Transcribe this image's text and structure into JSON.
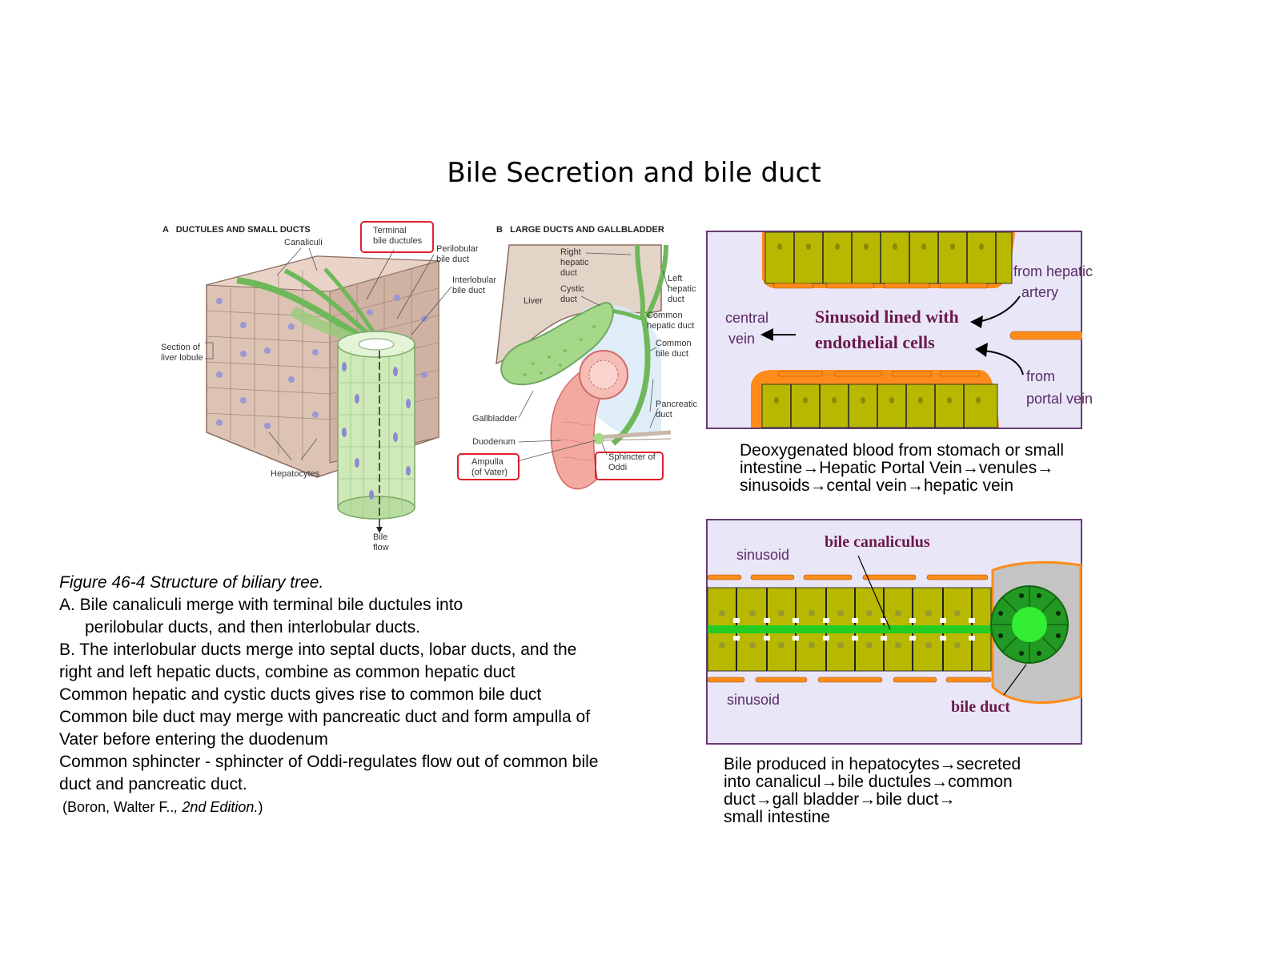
{
  "title": "Bile Secretion and bile duct",
  "figure_a": {
    "panel_title": "A   DUCTULES AND SMALL DUCTS",
    "labels": {
      "canaliculi": "Canaliculi",
      "terminal": "Terminal\nbile ductules",
      "perilobular": "Perilobular\nbile duct",
      "interlobular": "Interlobular\nbile duct",
      "section": "Section of\nliver lobule",
      "hepatocytes": "Hepatocytes",
      "bile_flow": "Bile\nflow"
    }
  },
  "figure_b": {
    "panel_title": "B   LARGE DUCTS AND GALLBLADDER",
    "labels": {
      "right_hepatic": "Right\nhepatic\nduct",
      "left_hepatic": "Left\nhepatic\nduct",
      "cystic": "Cystic\nduct",
      "liver": "Liver",
      "common_hepatic": "Common\nhepatic duct",
      "common_bile": "Common\nbile duct",
      "pancreatic": "Pancreatic\nduct",
      "gallbladder": "Gallbladder",
      "duodenum": "Duodenum",
      "ampulla": "Ampulla\n(of Vater)",
      "sphincter": "Sphincter of\nOddi"
    }
  },
  "caption": {
    "figure_title": "Figure 46-4 Structure of biliary tree.",
    "lines": [
      "A. Bile canaliculi merge with terminal bile ductules into",
      "perilobular ducts, and then interlobular ducts.",
      "B. The interlobular ducts merge into septal ducts, lobar ducts, and  the",
      "right and left hepatic ducts, combine as common hepatic duct",
      "Common hepatic and cystic ducts gives rise to common bile duct",
      "Common bile duct may merge with pancreatic duct and form ampulla of",
      "Vater before entering the duodenum",
      "Common sphincter - sphincter of Oddi-regulates flow out of  common bile",
      "duct and pancreatic duct."
    ],
    "reference_prefix": "(Boron, Walter F..",
    "reference_edition": ", 2nd Edition.",
    "reference_suffix": ")"
  },
  "sinusoid_diagram": {
    "title_line1": "Sinusoid lined with",
    "title_line2": "endothelial cells",
    "central_vein_line1": "central",
    "central_vein_line2": "vein",
    "hepatic_artery_line1": "from hepatic",
    "hepatic_artery_line2": "artery",
    "portal_vein_line1": "from",
    "portal_vein_line2": "portal vein",
    "text_lines": [
      "Deoxygenated blood from stomach or small",
      "intestine→Hepatic Portal Vein→venules→",
      "sinusoids→cental vein→hepatic vein"
    ]
  },
  "canaliculus_diagram": {
    "sinusoid_top": "sinusoid",
    "sinusoid_bottom": "sinusoid",
    "bile_canaliculus": "bile canaliculus",
    "bile_duct": "bile duct",
    "text_lines": [
      "Bile produced in hepatocytes→secreted",
      "into canalicul→bile ductules→common",
      "duct→gall bladder→bile duct→",
      "small intestine"
    ]
  },
  "colors": {
    "hepatocyte": "#b8b800",
    "endothelial": "#ff8c1a",
    "canaliculus": "#22cc22",
    "panel_bg": "#e9e6f8",
    "panel_border": "#6a3a74",
    "highlight_box": "#e0202a"
  }
}
